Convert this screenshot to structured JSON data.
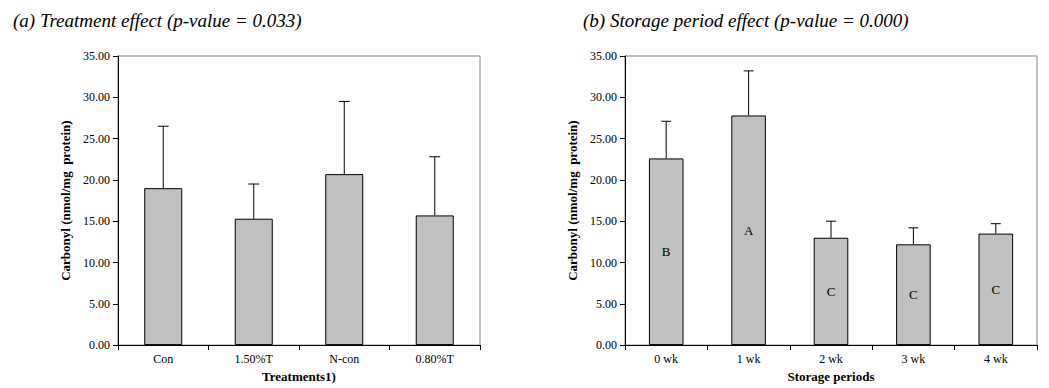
{
  "chart_data": [
    {
      "type": "bar",
      "title": "(a) Treatment effect (p-value = 0.033)",
      "xlabel": "Treatments1)",
      "ylabel": "Carbonyl (nmol/mg  protein)",
      "categories": [
        "Con",
        "1.50%T",
        "N-con",
        "0.80%T"
      ],
      "values": [
        19.0,
        15.3,
        20.7,
        15.7
      ],
      "errors": [
        7.5,
        4.2,
        8.8,
        7.1
      ],
      "color": "#c0c0c0",
      "ylim": [
        0,
        35
      ],
      "yticks": [
        {
          "value": 0,
          "label": "0.00"
        },
        {
          "value": 5,
          "label": "5.00"
        },
        {
          "value": 10,
          "label": "10.00"
        },
        {
          "value": 15,
          "label": "15.00"
        },
        {
          "value": 20,
          "label": "20.00"
        },
        {
          "value": 25,
          "label": "25.00"
        },
        {
          "value": 30,
          "label": "30.00"
        },
        {
          "value": 35,
          "label": "35.00"
        }
      ],
      "grid": false
    },
    {
      "type": "bar",
      "title": "(b) Storage period effect (p-value = 0.000)",
      "xlabel": "Storage periods",
      "ylabel": "Carbonyl (nmol/mg  protein)",
      "categories": [
        "0 wk",
        "1 wk",
        "2 wk",
        "3 wk",
        "4 wk"
      ],
      "values": [
        22.6,
        27.8,
        13.0,
        12.2,
        13.5
      ],
      "errors": [
        4.5,
        5.4,
        2.0,
        2.0,
        1.2
      ],
      "annotations": [
        "B",
        "A",
        "C",
        "C",
        "C"
      ],
      "color": "#c0c0c0",
      "ylim": [
        0,
        35
      ],
      "yticks": [
        {
          "value": 0,
          "label": "0.00"
        },
        {
          "value": 5,
          "label": "5.00"
        },
        {
          "value": 10,
          "label": "10.00"
        },
        {
          "value": 15,
          "label": "15.00"
        },
        {
          "value": 20,
          "label": "20.00"
        },
        {
          "value": 25,
          "label": "25.00"
        },
        {
          "value": 30,
          "label": "30.00"
        },
        {
          "value": 35,
          "label": "35.00"
        }
      ],
      "grid": false
    }
  ]
}
